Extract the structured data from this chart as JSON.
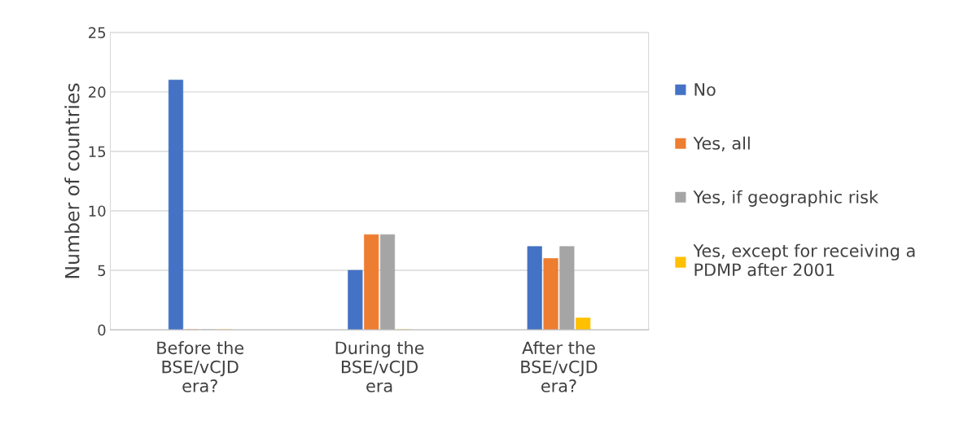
{
  "chart_data": {
    "type": "bar",
    "ylabel": "Number of countries",
    "categories": [
      "Before the BSE/vCJD era?",
      "During the BSE/vCJD era",
      "After the BSE/vCJD era?"
    ],
    "series": [
      {
        "name": "No",
        "color": "#4472c4",
        "values": [
          21,
          5,
          7
        ]
      },
      {
        "name": "Yes, all",
        "color": "#ed7d31",
        "values": [
          0,
          8,
          6
        ]
      },
      {
        "name": "Yes, if geographic risk",
        "color": "#a5a5a5",
        "values": [
          0,
          8,
          7
        ]
      },
      {
        "name": "Yes, except for receiving a PDMP after 2001",
        "color": "#ffc000",
        "values": [
          0,
          0,
          1
        ]
      }
    ],
    "ylim": [
      0,
      25
    ],
    "yticks": [
      0,
      5,
      10,
      15,
      20,
      25
    ],
    "grid": "y",
    "legend": "right"
  }
}
